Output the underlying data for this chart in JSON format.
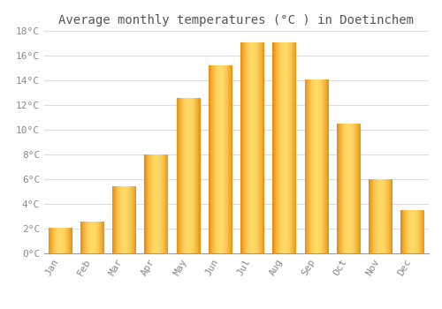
{
  "title": "Average monthly temperatures (°C ) in Doetinchem",
  "months": [
    "Jan",
    "Feb",
    "Mar",
    "Apr",
    "May",
    "Jun",
    "Jul",
    "Aug",
    "Sep",
    "Oct",
    "Nov",
    "Dec"
  ],
  "values": [
    2.1,
    2.6,
    5.4,
    8.0,
    12.6,
    15.2,
    17.1,
    17.1,
    14.1,
    10.5,
    6.0,
    3.5
  ],
  "bar_color_center": "#FFD966",
  "bar_color_edge": "#E8890A",
  "ylim": [
    0,
    18
  ],
  "yticks": [
    0,
    2,
    4,
    6,
    8,
    10,
    12,
    14,
    16,
    18
  ],
  "ytick_labels": [
    "0°C",
    "2°C",
    "4°C",
    "6°C",
    "8°C",
    "10°C",
    "12°C",
    "14°C",
    "16°C",
    "18°C"
  ],
  "background_color": "#FFFFFF",
  "grid_color": "#DDDDDD",
  "title_fontsize": 10,
  "tick_fontsize": 8,
  "bar_width": 0.75,
  "figsize": [
    5.0,
    3.5
  ],
  "dpi": 100
}
